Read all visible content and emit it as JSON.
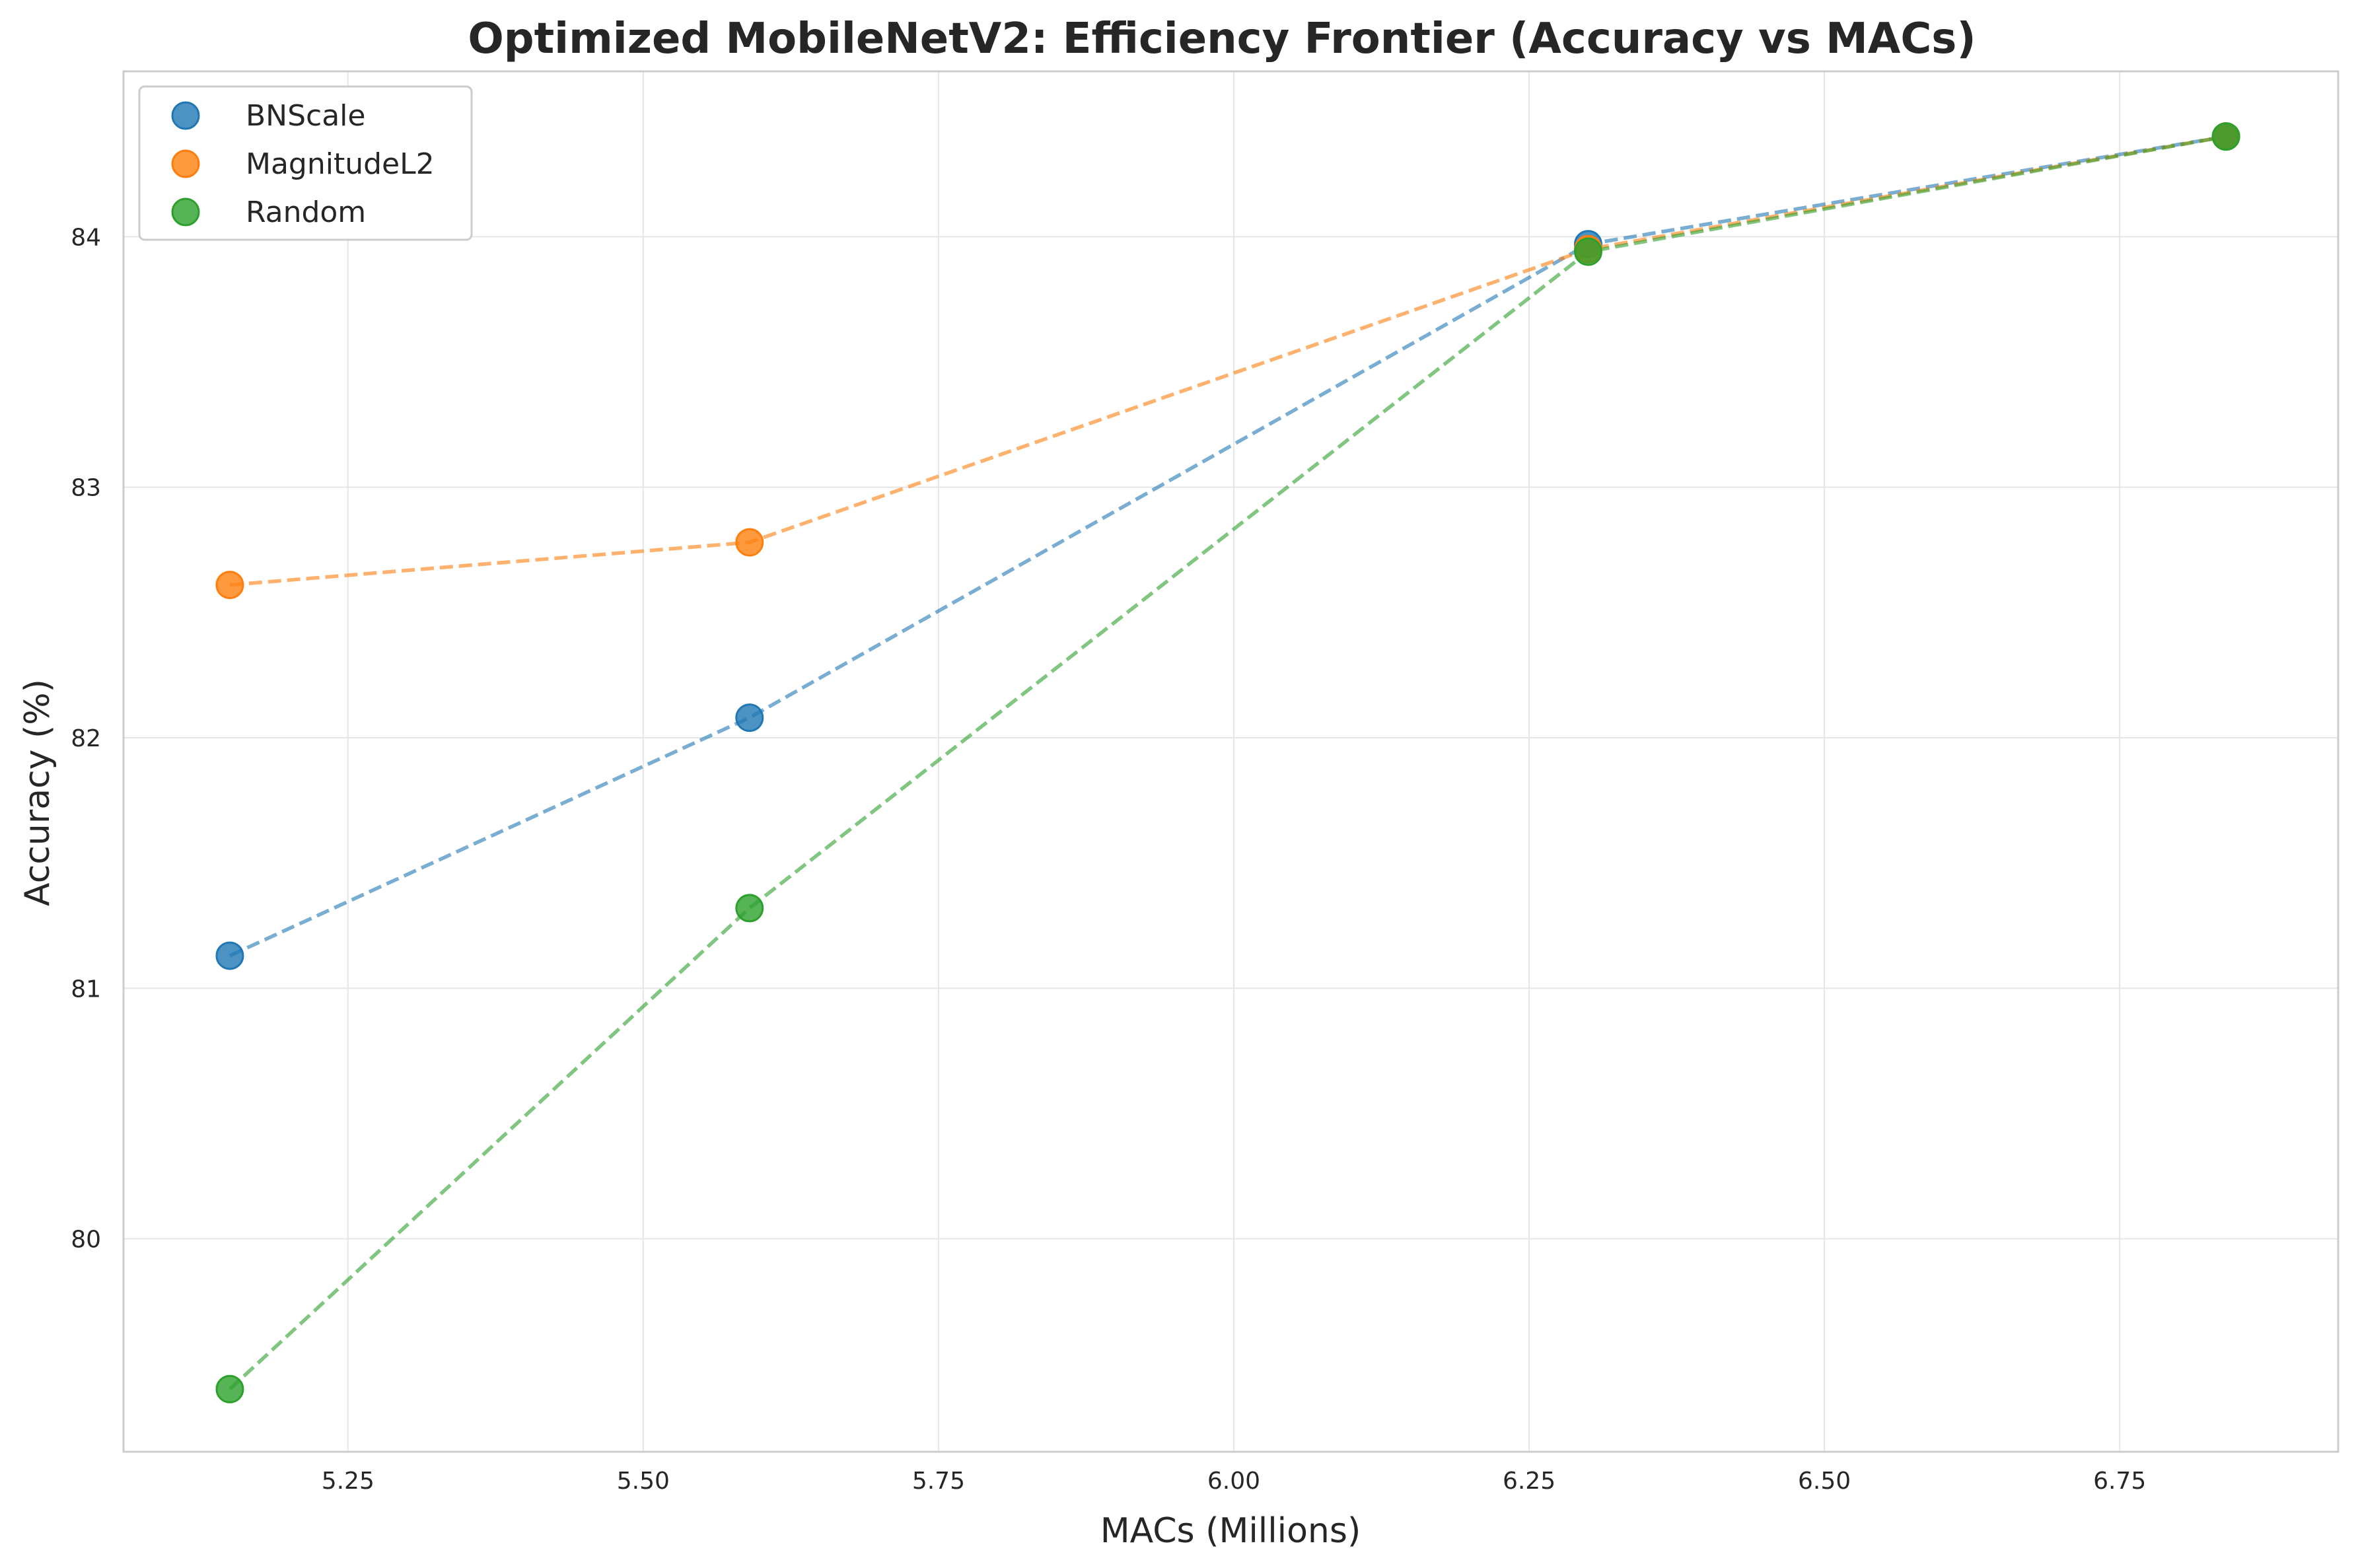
{
  "chart_data": {
    "type": "scatter",
    "title": "Optimized MobileNetV2: Efficiency Frontier (Accuracy vs MACs)",
    "xlabel": "MACs (Millions)",
    "ylabel": "Accuracy (%)",
    "xlim": [
      5.06,
      6.935
    ],
    "ylim": [
      79.15,
      84.66
    ],
    "xticks": [
      5.25,
      5.5,
      5.75,
      6.0,
      6.25,
      6.5,
      6.75
    ],
    "xtick_labels": [
      "5.25",
      "5.50",
      "5.75",
      "6.00",
      "6.25",
      "6.50",
      "6.75"
    ],
    "yticks": [
      80,
      81,
      82,
      83,
      84
    ],
    "ytick_labels": [
      "80",
      "81",
      "82",
      "83",
      "84"
    ],
    "grid": true,
    "legend_position": "top-left",
    "series": [
      {
        "name": "BNScale",
        "color": "#1f77b4",
        "line_style": "dashed",
        "x": [
          5.15,
          5.59,
          6.3,
          6.84
        ],
        "y": [
          81.13,
          82.08,
          83.97,
          84.4
        ]
      },
      {
        "name": "MagnitudeL2",
        "color": "#ff7f0e",
        "line_style": "dashed",
        "x": [
          5.15,
          5.59,
          6.3,
          6.84
        ],
        "y": [
          82.61,
          82.78,
          83.95,
          84.4
        ]
      },
      {
        "name": "Random",
        "color": "#2ca02c",
        "line_style": "dashed",
        "x": [
          5.15,
          5.59,
          6.3,
          6.84
        ],
        "y": [
          79.4,
          81.32,
          83.94,
          84.4
        ]
      }
    ]
  }
}
